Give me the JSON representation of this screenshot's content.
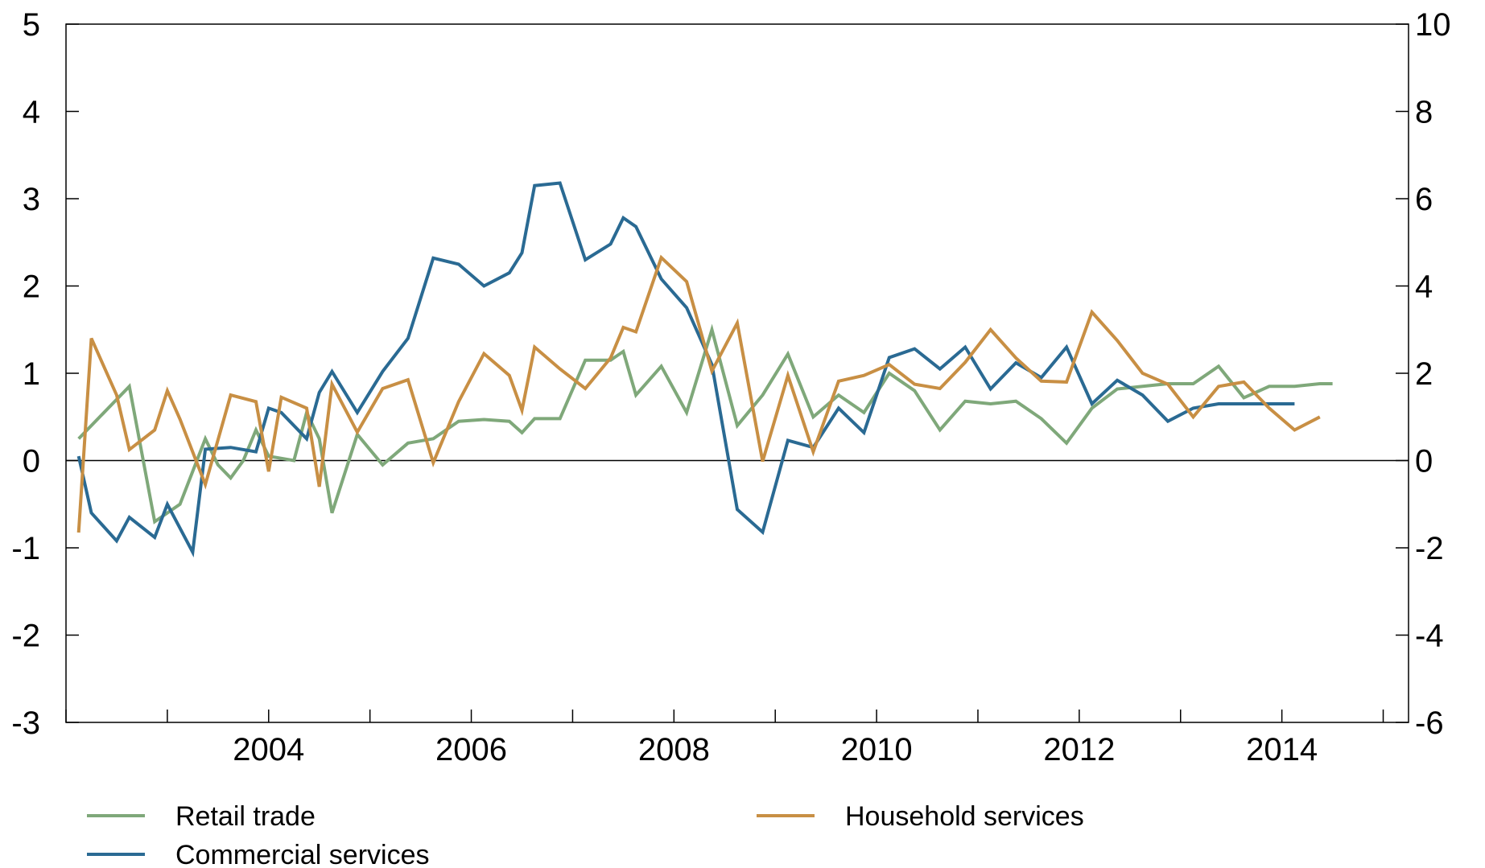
{
  "chart_data": {
    "type": "line",
    "title": "",
    "xlabel": "",
    "ylabel": "",
    "x_ticks": [
      "2004",
      "2006",
      "2008",
      "2010",
      "2012",
      "2014"
    ],
    "x_range": [
      2002.5,
      2015.75
    ],
    "y_left": {
      "ticks": [
        "-3",
        "-2",
        "-1",
        "0",
        "1",
        "2",
        "3",
        "4",
        "5"
      ],
      "range": [
        -3,
        5
      ]
    },
    "y_right": {
      "ticks": [
        "-6",
        "-4",
        "-2",
        "0",
        "2",
        "4",
        "6",
        "8",
        "10"
      ],
      "range": [
        -6,
        10
      ]
    },
    "grid": false,
    "zero_line": true,
    "legend": "bottom",
    "series": [
      {
        "name": "Retail trade",
        "axis": "left",
        "color": "#7fa87a",
        "x": [
          2002.625,
          2002.875,
          2003.125,
          2003.375,
          2003.5,
          2003.625,
          2003.875,
          2004.0,
          2004.125,
          2004.25,
          2004.375,
          2004.5,
          2004.75,
          2004.875,
          2005.0,
          2005.125,
          2005.375,
          2005.625,
          2005.875,
          2006.125,
          2006.375,
          2006.625,
          2006.875,
          2007.0,
          2007.125,
          2007.375,
          2007.625,
          2007.875,
          2008.0,
          2008.125,
          2008.375,
          2008.625,
          2008.875,
          2009.125,
          2009.375,
          2009.625,
          2009.875,
          2010.125,
          2010.375,
          2010.625,
          2010.875,
          2011.125,
          2011.375,
          2011.625,
          2011.875,
          2012.125,
          2012.375,
          2012.625,
          2012.875,
          2013.125,
          2013.375,
          2013.625,
          2013.875,
          2014.125,
          2014.375,
          2014.625,
          2014.875,
          2015.0
        ],
        "values": [
          0.25,
          0.55,
          0.85,
          -0.7,
          -0.6,
          -0.5,
          0.25,
          -0.05,
          -0.2,
          0.0,
          0.35,
          0.05,
          0.0,
          0.55,
          0.25,
          -0.6,
          0.3,
          -0.05,
          0.2,
          0.25,
          0.45,
          0.47,
          0.45,
          0.32,
          0.48,
          0.48,
          1.15,
          1.15,
          1.25,
          0.75,
          1.08,
          0.55,
          1.5,
          0.4,
          0.75,
          1.22,
          0.5,
          0.75,
          0.55,
          1.0,
          0.8,
          0.35,
          0.68,
          0.65,
          0.68,
          0.48,
          0.2,
          0.6,
          0.82,
          0.85,
          0.88,
          0.88,
          1.08,
          0.72,
          0.85,
          0.85,
          0.88,
          0.88
        ]
      },
      {
        "name": "Commercial services",
        "axis": "left",
        "color": "#2a6a93",
        "x": [
          2002.625,
          2002.75,
          2003.0,
          2003.125,
          2003.375,
          2003.5,
          2003.75,
          2003.875,
          2004.125,
          2004.375,
          2004.5,
          2004.625,
          2004.875,
          2005.0,
          2005.125,
          2005.375,
          2005.625,
          2005.875,
          2006.125,
          2006.375,
          2006.625,
          2006.875,
          2007.0,
          2007.125,
          2007.375,
          2007.625,
          2007.875,
          2008.0,
          2008.125,
          2008.375,
          2008.625,
          2008.875,
          2009.125,
          2009.375,
          2009.625,
          2009.875,
          2010.125,
          2010.375,
          2010.625,
          2010.875,
          2011.125,
          2011.375,
          2011.625,
          2011.875,
          2012.125,
          2012.375,
          2012.625,
          2012.875,
          2013.125,
          2013.375,
          2013.625,
          2013.875,
          2014.125,
          2014.375,
          2014.625
        ],
        "values": [
          0.05,
          -0.6,
          -0.92,
          -0.65,
          -0.88,
          -0.5,
          -1.05,
          0.13,
          0.15,
          0.1,
          0.6,
          0.55,
          0.25,
          0.78,
          1.02,
          0.55,
          1.02,
          1.4,
          2.32,
          2.25,
          2.0,
          2.15,
          2.38,
          3.15,
          3.18,
          2.3,
          2.48,
          2.78,
          2.68,
          2.08,
          1.75,
          1.1,
          -0.56,
          -0.82,
          0.23,
          0.15,
          0.6,
          0.32,
          1.18,
          1.28,
          1.05,
          1.3,
          0.82,
          1.12,
          0.95,
          1.3,
          0.65,
          0.92,
          0.75,
          0.45,
          0.6,
          0.65,
          0.65,
          0.65,
          0.65
        ]
      },
      {
        "name": "Household services",
        "axis": "right",
        "color": "#c88f44",
        "x": [
          2002.625,
          2002.75,
          2003.0,
          2003.125,
          2003.375,
          2003.5,
          2003.625,
          2003.875,
          2004.125,
          2004.375,
          2004.5,
          2004.625,
          2004.875,
          2005.0,
          2005.125,
          2005.375,
          2005.625,
          2005.875,
          2006.125,
          2006.375,
          2006.625,
          2006.875,
          2007.0,
          2007.125,
          2007.375,
          2007.625,
          2007.875,
          2008.0,
          2008.125,
          2008.375,
          2008.625,
          2008.875,
          2009.125,
          2009.375,
          2009.625,
          2009.875,
          2010.125,
          2010.375,
          2010.625,
          2010.875,
          2011.125,
          2011.375,
          2011.625,
          2011.875,
          2012.125,
          2012.375,
          2012.625,
          2012.875,
          2013.125,
          2013.375,
          2013.625,
          2013.875,
          2014.125,
          2014.375,
          2014.625,
          2014.875
        ],
        "values": [
          -1.65,
          2.8,
          1.5,
          0.25,
          0.7,
          1.6,
          0.95,
          -0.55,
          1.5,
          1.35,
          -0.25,
          1.45,
          1.2,
          -0.6,
          1.75,
          0.65,
          1.65,
          1.85,
          -0.05,
          1.35,
          2.45,
          1.95,
          1.15,
          2.6,
          2.1,
          1.65,
          2.35,
          3.05,
          2.95,
          4.65,
          4.1,
          2.05,
          3.15,
          -0.02,
          1.95,
          0.2,
          1.82,
          1.95,
          2.2,
          1.75,
          1.65,
          2.25,
          3.0,
          2.35,
          1.82,
          1.8,
          3.4,
          2.75,
          2.0,
          1.75,
          1.0,
          1.7,
          1.8,
          1.2,
          0.7,
          1.0
        ]
      }
    ]
  }
}
